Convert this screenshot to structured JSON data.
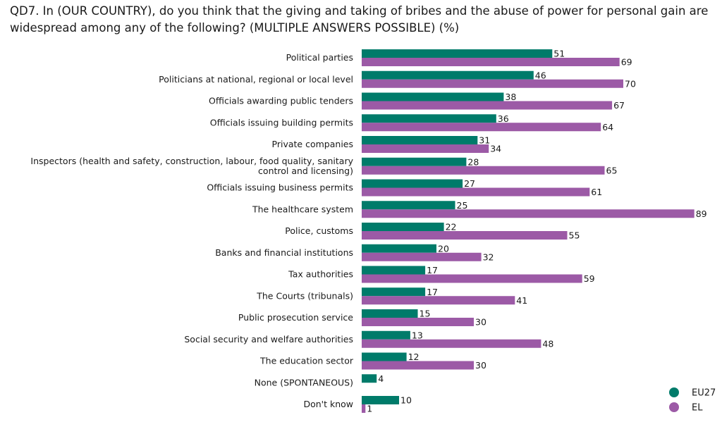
{
  "title": "QD7. In (OUR COUNTRY), do you think that the giving and taking of bribes and the abuse of power for personal gain are widespread among any of the following? (MULTIPLE ANSWERS POSSIBLE) (%)",
  "colors": {
    "EU27": "#007b6a",
    "EL": "#9c5aa6"
  },
  "chart_data": {
    "type": "bar",
    "orientation": "horizontal",
    "title": "QD7. In (OUR COUNTRY), do you think that the giving and taking of bribes and the abuse of power for personal gain are widespread among any of the following? (MULTIPLE ANSWERS POSSIBLE) (%)",
    "categories": [
      "Political parties",
      "Politicians at national, regional or local level",
      "Officials awarding public tenders",
      "Officials issuing building permits",
      "Private companies",
      "Inspectors (health and safety, construction, labour, food quality, sanitary control and licensing)",
      "Officials issuing business permits",
      "The healthcare system",
      "Police, customs",
      "Banks and financial institutions",
      "Tax authorities",
      "The Courts (tribunals)",
      "Public prosecution service",
      "Social security and welfare authorities",
      "The education sector",
      "None (SPONTANEOUS)",
      "Don't know"
    ],
    "series": [
      {
        "name": "EU27",
        "values": [
          51,
          46,
          38,
          36,
          31,
          28,
          27,
          25,
          22,
          20,
          17,
          17,
          15,
          13,
          12,
          4,
          10
        ]
      },
      {
        "name": "EL",
        "values": [
          69,
          70,
          67,
          64,
          34,
          65,
          61,
          89,
          55,
          32,
          59,
          41,
          30,
          48,
          30,
          null,
          1
        ]
      }
    ],
    "xlim": [
      0,
      100
    ],
    "grid": false,
    "legend": "bottom-right"
  }
}
